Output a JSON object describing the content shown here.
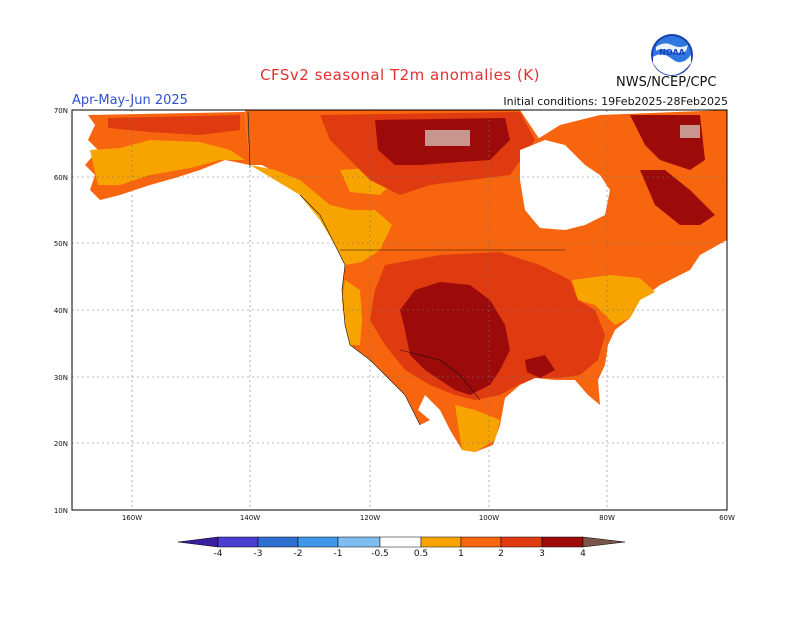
{
  "title": "CFSv2 seasonal T2m anomalies (K)",
  "period": "Apr-May-Jun 2025",
  "initial_conditions": "Initial conditions: 19Feb2025-28Feb2025",
  "agency": "NWS/NCEP/CPC",
  "logo_text": "NOAA",
  "latitude_labels": [
    "70N",
    "60N",
    "50N",
    "40N",
    "30N",
    "20N",
    "10N"
  ],
  "longitude_labels": [
    "160W",
    "140W",
    "120W",
    "100W",
    "80W",
    "60W"
  ],
  "colorbar": {
    "labels": [
      "-4",
      "-3",
      "-2",
      "-1",
      "-0.5",
      "0.5",
      "1",
      "2",
      "3",
      "4"
    ],
    "colors": [
      "#3a1ea0",
      "#4a3fd0",
      "#2f6fd0",
      "#3f97e8",
      "#7fbcf0",
      "#ffffff",
      "#f7a400",
      "#f7650f",
      "#e03a10",
      "#9c0a0a",
      "#c8968c",
      "#7a5448"
    ]
  },
  "colors": {
    "ocean": "#ffffff",
    "anom_0_5_1": "#f7a400",
    "anom_1_2": "#f7650f",
    "anom_2_3": "#e03a10",
    "anom_3_4": "#9c0a0a",
    "anom_gt4": "#c8968c"
  }
}
